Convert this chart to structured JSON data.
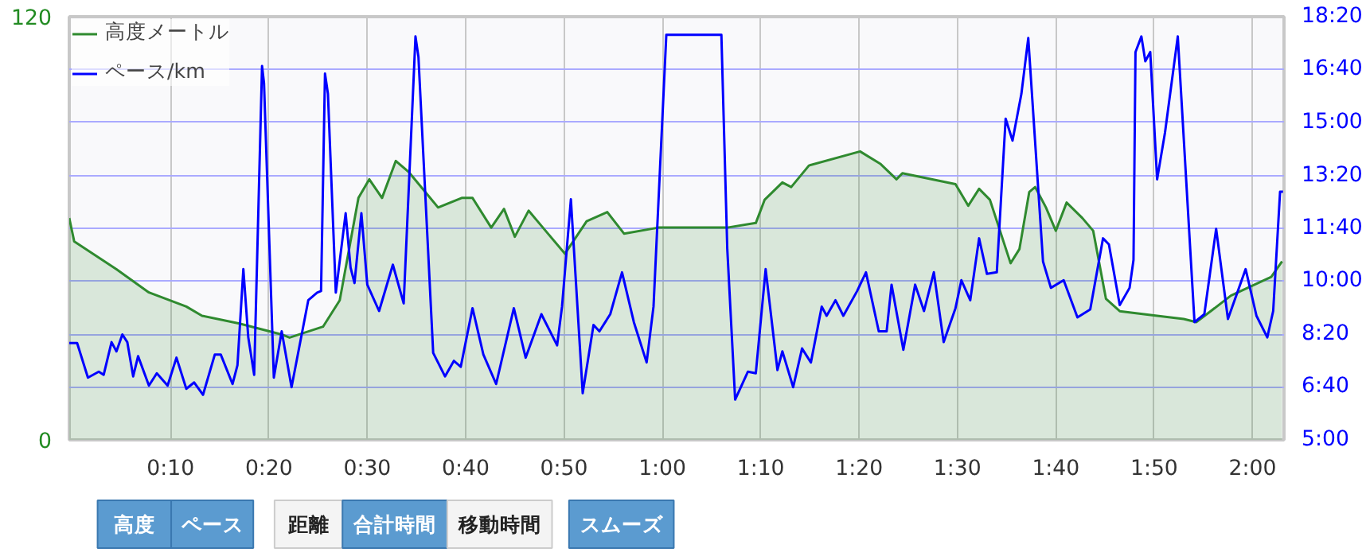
{
  "chart_data": {
    "type": "area",
    "xlim": [
      -0.3,
      123.2
    ],
    "ylim": [
      0,
      120
    ],
    "yticks": [
      0,
      120
    ],
    "xticks": [
      {
        "value": 10,
        "label": "0:10"
      },
      {
        "value": 20,
        "label": "0:20"
      },
      {
        "value": 30,
        "label": "0:30"
      },
      {
        "value": 40,
        "label": "0:40"
      },
      {
        "value": 50,
        "label": "0:50"
      },
      {
        "value": 60,
        "label": "1:00"
      },
      {
        "value": 70,
        "label": "1:10"
      },
      {
        "value": 80,
        "label": "1:20"
      },
      {
        "value": 90,
        "label": "1:30"
      },
      {
        "value": 100,
        "label": "1:40"
      },
      {
        "value": 110,
        "label": "1:50"
      },
      {
        "value": 120,
        "label": "2:00"
      }
    ],
    "y2lim": [
      5,
      18.333
    ],
    "y2ticks": [
      {
        "value": 5,
        "label": "5:00"
      },
      {
        "value": 6.667,
        "label": "6:40"
      },
      {
        "value": 8.333,
        "label": "8:20"
      },
      {
        "value": 10,
        "label": "10:00"
      },
      {
        "value": 11.667,
        "label": "11:40"
      },
      {
        "value": 13.333,
        "label": "13:20"
      },
      {
        "value": 15,
        "label": "15:00"
      },
      {
        "value": 16.667,
        "label": "16:40"
      },
      {
        "value": 18.333,
        "label": "18:20"
      }
    ],
    "grid": true,
    "legend": "top left",
    "series": [
      {
        "name": "高度メートル",
        "color": "#2f8a2f",
        "x": [
          -0.3,
          0.2,
          4.5,
          7.8,
          11.6,
          13.2,
          17.0,
          21.3,
          22.1,
          25.5,
          27.2,
          29.1,
          30.2,
          31.5,
          32.9,
          34.2,
          37.2,
          39.6,
          40.7,
          42.6,
          43.9,
          45.0,
          46.4,
          47.7,
          50.1,
          52.3,
          54.4,
          56.1,
          59.6,
          66.6,
          69.5,
          70.4,
          72.2,
          73.1,
          74.9,
          80.1,
          82.2,
          83.8,
          84.4,
          89.8,
          91.1,
          92.2,
          93.3,
          95.4,
          96.3,
          97.3,
          97.9,
          99.0,
          100.0,
          101.1,
          102.7,
          103.8,
          105.1,
          106.5,
          110.3,
          113.0,
          114.3,
          117.8,
          121.9,
          123.0
        ],
        "values": [
          62.9,
          56.3,
          48.4,
          41.8,
          37.8,
          35.2,
          33.0,
          29.9,
          29.0,
          32.1,
          39.6,
          68.6,
          73.9,
          68.6,
          79.1,
          76.0,
          65.9,
          68.6,
          68.6,
          60.2,
          65.5,
          57.6,
          65.0,
          60.7,
          52.8,
          62.0,
          64.6,
          58.5,
          60.2,
          60.2,
          61.5,
          68.1,
          73.0,
          71.7,
          77.8,
          81.8,
          78.2,
          73.9,
          75.6,
          72.5,
          66.4,
          71.2,
          68.1,
          50.1,
          54.1,
          70.3,
          71.7,
          65.9,
          59.3,
          67.3,
          62.9,
          59.3,
          40.0,
          36.5,
          35.2,
          34.3,
          33.4,
          40.9,
          46.2,
          50.6
        ]
      },
      {
        "name": "ペース/km",
        "type": "line",
        "axis": "y2",
        "color": "#0000ff",
        "x": [
          -0.3,
          0.5,
          1.6,
          2.7,
          3.2,
          4.0,
          4.5,
          5.1,
          5.6,
          6.2,
          6.7,
          7.8,
          8.6,
          9.7,
          10.6,
          11.6,
          12.4,
          13.3,
          14.5,
          15.1,
          16.3,
          16.8,
          17.4,
          17.9,
          18.5,
          19.3,
          19.5,
          20.5,
          21.3,
          22.3,
          24.0,
          24.9,
          25.3,
          25.7,
          26.0,
          26.8,
          27.8,
          28.3,
          28.7,
          29.4,
          30.0,
          31.2,
          32.6,
          33.7,
          34.9,
          35.2,
          36.7,
          37.9,
          38.8,
          39.5,
          40.7,
          41.8,
          43.1,
          44.9,
          46.1,
          47.7,
          49.3,
          49.8,
          50.7,
          51.9,
          53.0,
          53.6,
          54.7,
          55.9,
          57.1,
          58.4,
          59.1,
          60.4,
          66.0,
          66.6,
          67.4,
          68.7,
          69.5,
          70.5,
          71.7,
          72.2,
          73.3,
          74.2,
          75.1,
          76.2,
          76.7,
          77.6,
          78.4,
          79.8,
          80.7,
          82.0,
          82.8,
          83.3,
          84.5,
          85.7,
          86.6,
          87.6,
          88.6,
          89.8,
          90.4,
          91.3,
          92.2,
          93.0,
          94.0,
          94.9,
          95.6,
          96.5,
          97.2,
          98.7,
          99.5,
          100.8,
          102.2,
          103.5,
          104.8,
          105.4,
          106.5,
          107.5,
          107.9,
          108.1,
          108.7,
          109.1,
          109.6,
          110.3,
          111.1,
          112.4,
          114.1,
          115.1,
          116.3,
          117.5,
          119.3,
          120.4,
          121.5,
          122.1,
          122.8,
          123.1
        ],
        "values": [
          8.05,
          8.05,
          6.96,
          7.15,
          7.05,
          8.08,
          7.79,
          8.32,
          8.08,
          7.0,
          7.64,
          6.71,
          7.1,
          6.71,
          7.59,
          6.61,
          6.81,
          6.42,
          7.69,
          7.69,
          6.76,
          7.35,
          10.38,
          8.23,
          7.05,
          16.78,
          16.24,
          6.96,
          8.42,
          6.66,
          9.4,
          9.64,
          9.69,
          16.54,
          15.9,
          9.64,
          12.14,
          10.43,
          9.94,
          12.14,
          9.89,
          9.06,
          10.52,
          9.3,
          17.71,
          17.07,
          7.74,
          7.0,
          7.49,
          7.3,
          9.15,
          7.69,
          6.76,
          9.15,
          7.59,
          8.96,
          7.98,
          9.2,
          12.58,
          6.47,
          8.62,
          8.42,
          8.96,
          10.28,
          8.71,
          7.44,
          9.2,
          17.76,
          17.76,
          11.01,
          6.27,
          7.15,
          7.1,
          10.38,
          7.2,
          7.79,
          6.66,
          7.88,
          7.44,
          9.2,
          8.91,
          9.4,
          8.91,
          9.69,
          10.28,
          8.42,
          8.42,
          9.89,
          7.84,
          9.89,
          9.06,
          10.28,
          8.08,
          9.15,
          10.03,
          9.4,
          11.35,
          10.23,
          10.28,
          15.12,
          14.43,
          15.9,
          17.66,
          10.62,
          9.79,
          10.03,
          8.86,
          9.11,
          11.35,
          11.16,
          9.25,
          9.79,
          10.67,
          17.22,
          17.71,
          16.93,
          17.22,
          13.21,
          14.68,
          17.71,
          8.71,
          8.96,
          11.65,
          8.81,
          10.38,
          8.91,
          8.23,
          9.06,
          12.82,
          12.82
        ]
      }
    ],
    "annotations": [
      "高度",
      "ペース",
      "距離",
      "合計時間",
      "移動時間",
      "スムーズ"
    ]
  }
}
